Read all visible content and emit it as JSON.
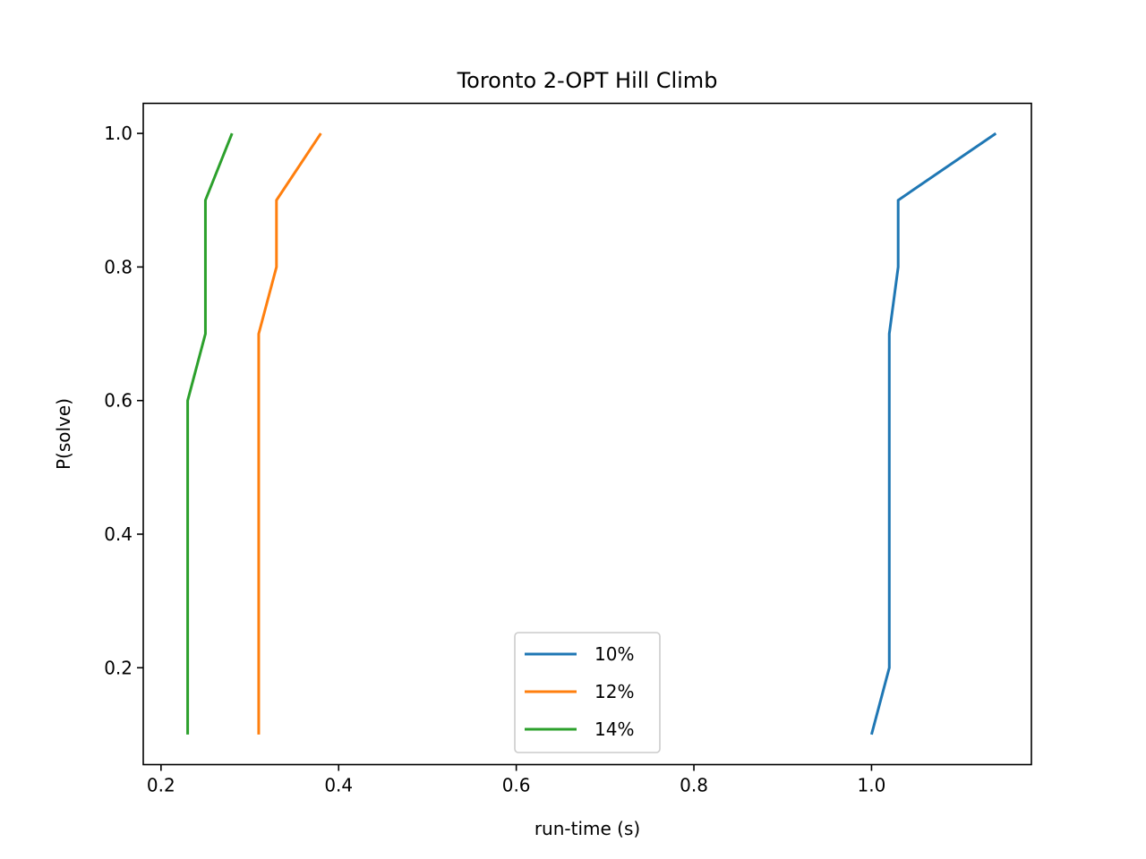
{
  "chart_data": {
    "type": "line",
    "title": "Toronto 2-OPT Hill Climb",
    "xlabel": "run-time (s)",
    "ylabel": "P(solve)",
    "xlim": [
      0.18,
      1.18
    ],
    "ylim": [
      0.055,
      1.045
    ],
    "xticks": [
      0.2,
      0.4,
      0.6,
      0.8,
      1.0
    ],
    "xtick_labels": [
      "0.2",
      "0.4",
      "0.6",
      "0.8",
      "1.0"
    ],
    "yticks": [
      0.2,
      0.4,
      0.6,
      0.8,
      1.0
    ],
    "ytick_labels": [
      "0.2",
      "0.4",
      "0.6",
      "0.8",
      "1.0"
    ],
    "grid": false,
    "legend_position": "bottom-center",
    "series": [
      {
        "name": "10%",
        "color": "#1f77b4",
        "points": [
          [
            1.0,
            0.1
          ],
          [
            1.02,
            0.2
          ],
          [
            1.02,
            0.7
          ],
          [
            1.03,
            0.8
          ],
          [
            1.03,
            0.9
          ],
          [
            1.14,
            1.0
          ]
        ]
      },
      {
        "name": "12%",
        "color": "#ff7f0e",
        "points": [
          [
            0.31,
            0.1
          ],
          [
            0.31,
            0.7
          ],
          [
            0.33,
            0.8
          ],
          [
            0.33,
            0.9
          ],
          [
            0.38,
            1.0
          ]
        ]
      },
      {
        "name": "14%",
        "color": "#2ca02c",
        "points": [
          [
            0.23,
            0.1
          ],
          [
            0.23,
            0.6
          ],
          [
            0.25,
            0.7
          ],
          [
            0.25,
            0.9
          ],
          [
            0.28,
            1.0
          ]
        ]
      }
    ]
  }
}
